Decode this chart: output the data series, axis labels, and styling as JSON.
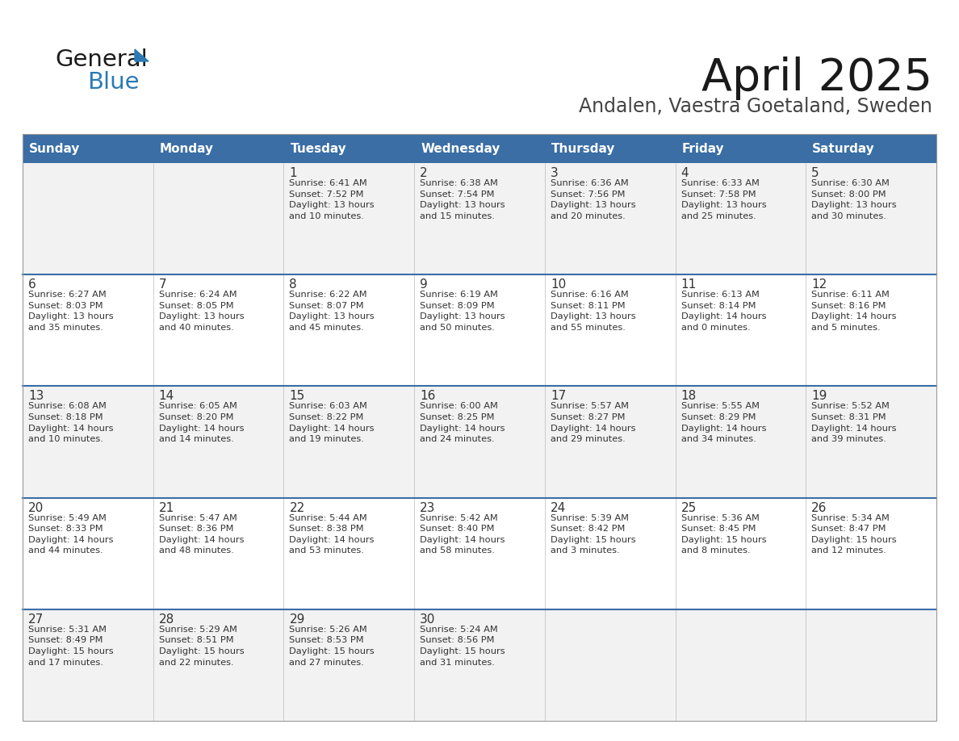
{
  "title": "April 2025",
  "subtitle": "Andalen, Vaestra Goetaland, Sweden",
  "days_of_week": [
    "Sunday",
    "Monday",
    "Tuesday",
    "Wednesday",
    "Thursday",
    "Friday",
    "Saturday"
  ],
  "header_bg": "#3a6ea5",
  "header_text": "#ffffff",
  "row_bg_odd": "#f2f2f2",
  "row_bg_even": "#ffffff",
  "separator_color": "#3a6ea5",
  "text_color": "#333333",
  "calendar_data": [
    [
      {
        "day": "",
        "info": ""
      },
      {
        "day": "",
        "info": ""
      },
      {
        "day": "1",
        "info": "Sunrise: 6:41 AM\nSunset: 7:52 PM\nDaylight: 13 hours\nand 10 minutes."
      },
      {
        "day": "2",
        "info": "Sunrise: 6:38 AM\nSunset: 7:54 PM\nDaylight: 13 hours\nand 15 minutes."
      },
      {
        "day": "3",
        "info": "Sunrise: 6:36 AM\nSunset: 7:56 PM\nDaylight: 13 hours\nand 20 minutes."
      },
      {
        "day": "4",
        "info": "Sunrise: 6:33 AM\nSunset: 7:58 PM\nDaylight: 13 hours\nand 25 minutes."
      },
      {
        "day": "5",
        "info": "Sunrise: 6:30 AM\nSunset: 8:00 PM\nDaylight: 13 hours\nand 30 minutes."
      }
    ],
    [
      {
        "day": "6",
        "info": "Sunrise: 6:27 AM\nSunset: 8:03 PM\nDaylight: 13 hours\nand 35 minutes."
      },
      {
        "day": "7",
        "info": "Sunrise: 6:24 AM\nSunset: 8:05 PM\nDaylight: 13 hours\nand 40 minutes."
      },
      {
        "day": "8",
        "info": "Sunrise: 6:22 AM\nSunset: 8:07 PM\nDaylight: 13 hours\nand 45 minutes."
      },
      {
        "day": "9",
        "info": "Sunrise: 6:19 AM\nSunset: 8:09 PM\nDaylight: 13 hours\nand 50 minutes."
      },
      {
        "day": "10",
        "info": "Sunrise: 6:16 AM\nSunset: 8:11 PM\nDaylight: 13 hours\nand 55 minutes."
      },
      {
        "day": "11",
        "info": "Sunrise: 6:13 AM\nSunset: 8:14 PM\nDaylight: 14 hours\nand 0 minutes."
      },
      {
        "day": "12",
        "info": "Sunrise: 6:11 AM\nSunset: 8:16 PM\nDaylight: 14 hours\nand 5 minutes."
      }
    ],
    [
      {
        "day": "13",
        "info": "Sunrise: 6:08 AM\nSunset: 8:18 PM\nDaylight: 14 hours\nand 10 minutes."
      },
      {
        "day": "14",
        "info": "Sunrise: 6:05 AM\nSunset: 8:20 PM\nDaylight: 14 hours\nand 14 minutes."
      },
      {
        "day": "15",
        "info": "Sunrise: 6:03 AM\nSunset: 8:22 PM\nDaylight: 14 hours\nand 19 minutes."
      },
      {
        "day": "16",
        "info": "Sunrise: 6:00 AM\nSunset: 8:25 PM\nDaylight: 14 hours\nand 24 minutes."
      },
      {
        "day": "17",
        "info": "Sunrise: 5:57 AM\nSunset: 8:27 PM\nDaylight: 14 hours\nand 29 minutes."
      },
      {
        "day": "18",
        "info": "Sunrise: 5:55 AM\nSunset: 8:29 PM\nDaylight: 14 hours\nand 34 minutes."
      },
      {
        "day": "19",
        "info": "Sunrise: 5:52 AM\nSunset: 8:31 PM\nDaylight: 14 hours\nand 39 minutes."
      }
    ],
    [
      {
        "day": "20",
        "info": "Sunrise: 5:49 AM\nSunset: 8:33 PM\nDaylight: 14 hours\nand 44 minutes."
      },
      {
        "day": "21",
        "info": "Sunrise: 5:47 AM\nSunset: 8:36 PM\nDaylight: 14 hours\nand 48 minutes."
      },
      {
        "day": "22",
        "info": "Sunrise: 5:44 AM\nSunset: 8:38 PM\nDaylight: 14 hours\nand 53 minutes."
      },
      {
        "day": "23",
        "info": "Sunrise: 5:42 AM\nSunset: 8:40 PM\nDaylight: 14 hours\nand 58 minutes."
      },
      {
        "day": "24",
        "info": "Sunrise: 5:39 AM\nSunset: 8:42 PM\nDaylight: 15 hours\nand 3 minutes."
      },
      {
        "day": "25",
        "info": "Sunrise: 5:36 AM\nSunset: 8:45 PM\nDaylight: 15 hours\nand 8 minutes."
      },
      {
        "day": "26",
        "info": "Sunrise: 5:34 AM\nSunset: 8:47 PM\nDaylight: 15 hours\nand 12 minutes."
      }
    ],
    [
      {
        "day": "27",
        "info": "Sunrise: 5:31 AM\nSunset: 8:49 PM\nDaylight: 15 hours\nand 17 minutes."
      },
      {
        "day": "28",
        "info": "Sunrise: 5:29 AM\nSunset: 8:51 PM\nDaylight: 15 hours\nand 22 minutes."
      },
      {
        "day": "29",
        "info": "Sunrise: 5:26 AM\nSunset: 8:53 PM\nDaylight: 15 hours\nand 27 minutes."
      },
      {
        "day": "30",
        "info": "Sunrise: 5:24 AM\nSunset: 8:56 PM\nDaylight: 15 hours\nand 31 minutes."
      },
      {
        "day": "",
        "info": ""
      },
      {
        "day": "",
        "info": ""
      },
      {
        "day": "",
        "info": ""
      }
    ]
  ],
  "logo_general_color": "#1a1a1a",
  "logo_blue_color": "#2a7ab5",
  "title_color": "#1a1a1a",
  "subtitle_color": "#444444"
}
